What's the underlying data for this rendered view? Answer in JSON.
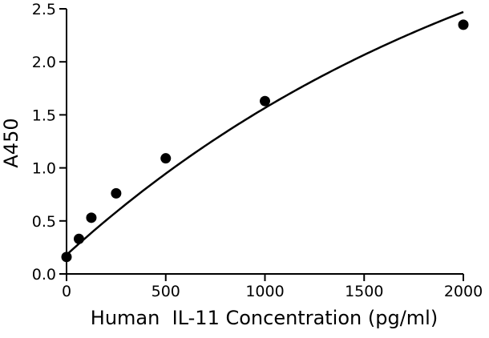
{
  "chart_data": {
    "type": "scatter",
    "title": "",
    "xlabel": "Human  IL-11 Concentration (pg/ml)",
    "ylabel": "A450",
    "xlim": [
      0,
      2000
    ],
    "ylim": [
      0,
      2.5
    ],
    "x_ticks": [
      0,
      500,
      1000,
      1500,
      2000
    ],
    "y_ticks": [
      0.0,
      0.5,
      1.0,
      1.5,
      2.0,
      2.5
    ],
    "x_tick_labels": [
      "0",
      "500",
      "1000",
      "1500",
      "2000"
    ],
    "y_tick_labels": [
      "0.0",
      "0.5",
      "1.0",
      "1.5",
      "2.0",
      "2.5"
    ],
    "grid": false,
    "legend": "none",
    "series": [
      {
        "x": [
          0,
          62.5,
          125,
          250,
          500,
          1000,
          2000
        ],
        "y": [
          0.16,
          0.33,
          0.53,
          0.76,
          1.09,
          1.63,
          2.35
        ]
      }
    ],
    "fit_curve": {
      "type": "saturation",
      "a": 4.0,
      "b": 0.000425,
      "y0": 0.18
    },
    "colors": {
      "axis": "#000000",
      "marker": "#000000",
      "curve": "#000000"
    }
  }
}
